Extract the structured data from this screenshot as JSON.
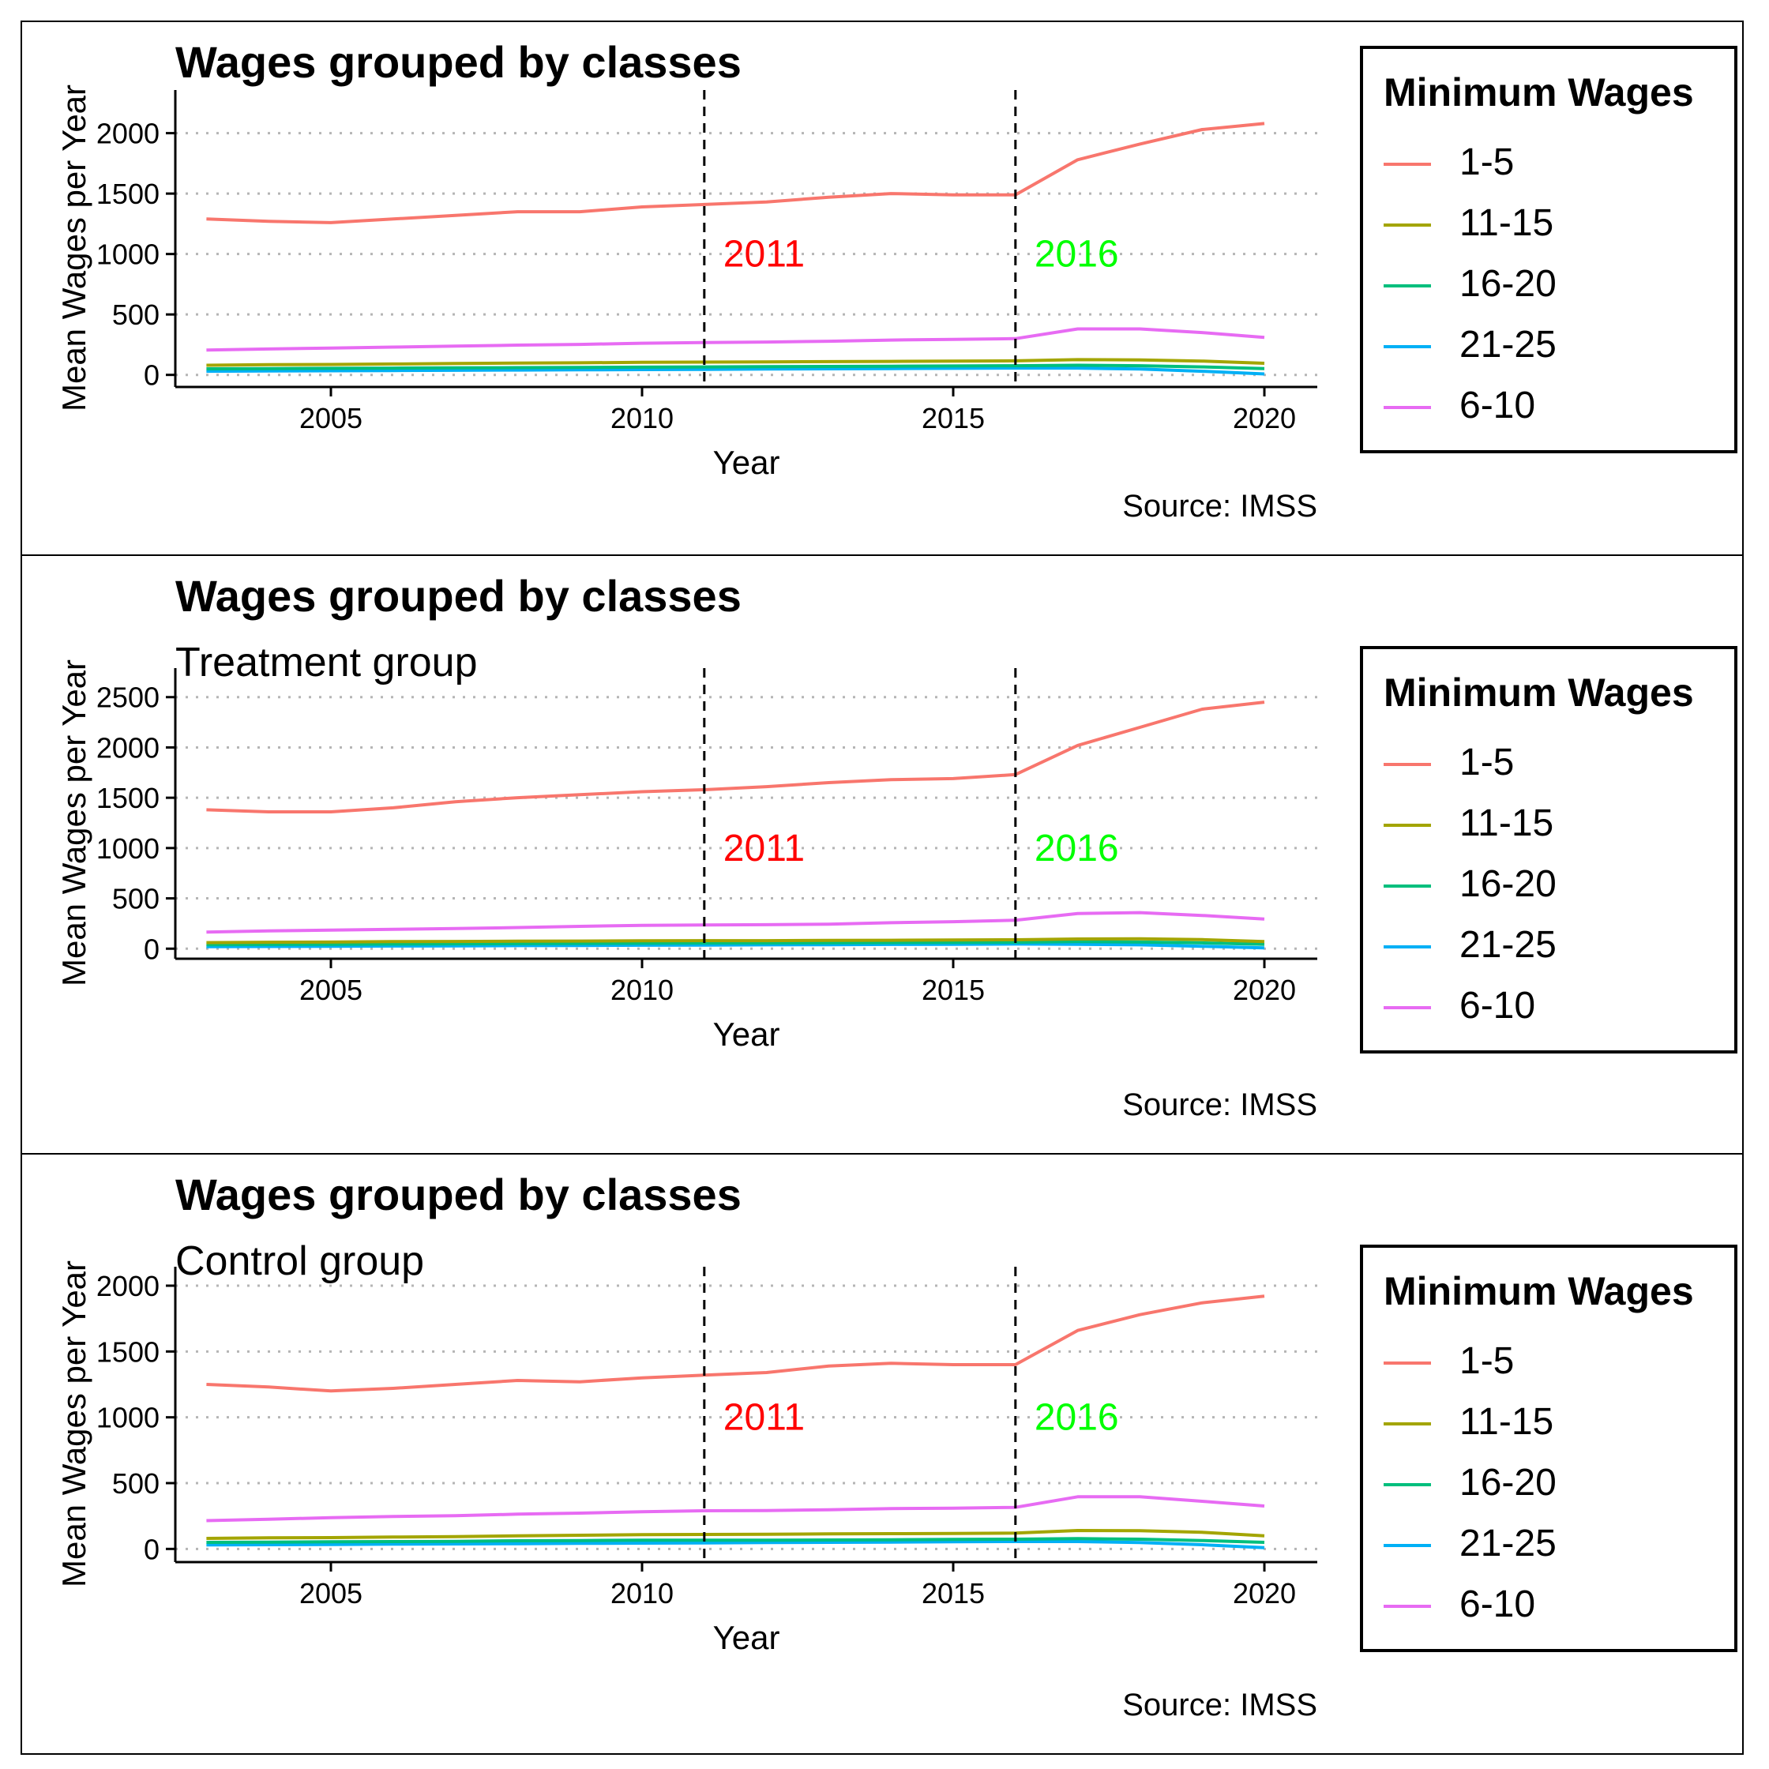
{
  "legend": {
    "title": "Minimum Wages",
    "entries": [
      {
        "label": "1-5",
        "color": "#F8766D"
      },
      {
        "label": "11-15",
        "color": "#A3A500"
      },
      {
        "label": "16-20",
        "color": "#00BF7D"
      },
      {
        "label": "21-25",
        "color": "#00B0F6"
      },
      {
        "label": "6-10",
        "color": "#E76BF3"
      }
    ]
  },
  "annotations": [
    {
      "x": 2011,
      "label": "2011",
      "color": "#FF0000"
    },
    {
      "x": 2016,
      "label": "2016",
      "color": "#00FF00"
    }
  ],
  "chart_data": [
    {
      "type": "line",
      "title": "Wages grouped by classes",
      "subtitle": "",
      "caption": "Source: IMSS",
      "xlabel": "Year",
      "ylabel": "Mean Wages per Year",
      "xlim": [
        2002.5,
        2020.85
      ],
      "ylim": [
        -100,
        2200
      ],
      "x_ticks": [
        2005,
        2010,
        2015,
        2020
      ],
      "y_ticks": [
        0,
        500,
        1000,
        1500,
        2000
      ],
      "grid": "horizontal-dotted",
      "x": [
        2003,
        2004,
        2005,
        2006,
        2007,
        2008,
        2009,
        2010,
        2011,
        2012,
        2013,
        2014,
        2015,
        2016,
        2017,
        2018,
        2019,
        2020
      ],
      "series": [
        {
          "name": "1-5",
          "values": [
            1290,
            1270,
            1260,
            1290,
            1320,
            1350,
            1350,
            1390,
            1410,
            1430,
            1470,
            1500,
            1490,
            1490,
            1780,
            1910,
            2030,
            2080
          ]
        },
        {
          "name": "11-15",
          "values": [
            80,
            84,
            86,
            90,
            94,
            98,
            100,
            104,
            106,
            108,
            110,
            112,
            114,
            116,
            126,
            124,
            114,
            96
          ]
        },
        {
          "name": "16-20",
          "values": [
            50,
            52,
            54,
            56,
            58,
            60,
            62,
            64,
            66,
            68,
            70,
            72,
            74,
            76,
            80,
            76,
            66,
            52
          ]
        },
        {
          "name": "21-25",
          "values": [
            30,
            32,
            34,
            36,
            38,
            40,
            42,
            44,
            46,
            48,
            50,
            52,
            54,
            56,
            56,
            48,
            30,
            8
          ]
        },
        {
          "name": "6-10",
          "values": [
            205,
            214,
            222,
            230,
            238,
            246,
            252,
            262,
            268,
            272,
            278,
            288,
            294,
            300,
            380,
            380,
            350,
            310
          ]
        }
      ]
    },
    {
      "type": "line",
      "title": "Wages grouped by classes",
      "subtitle": "Treatment group",
      "caption": "Source: IMSS",
      "xlabel": "Year",
      "ylabel": "Mean Wages per Year",
      "xlim": [
        2002.5,
        2020.85
      ],
      "ylim": [
        -100,
        2600
      ],
      "x_ticks": [
        2005,
        2010,
        2015,
        2020
      ],
      "y_ticks": [
        0,
        500,
        1000,
        1500,
        2000,
        2500
      ],
      "grid": "horizontal-dotted",
      "x": [
        2003,
        2004,
        2005,
        2006,
        2007,
        2008,
        2009,
        2010,
        2011,
        2012,
        2013,
        2014,
        2015,
        2016,
        2017,
        2018,
        2019,
        2020
      ],
      "series": [
        {
          "name": "1-5",
          "values": [
            1380,
            1360,
            1360,
            1400,
            1460,
            1500,
            1530,
            1560,
            1580,
            1610,
            1650,
            1680,
            1690,
            1730,
            2020,
            2200,
            2380,
            2450
          ]
        },
        {
          "name": "11-15",
          "values": [
            60,
            64,
            66,
            70,
            72,
            74,
            76,
            78,
            80,
            80,
            82,
            84,
            86,
            88,
            96,
            98,
            90,
            70
          ]
        },
        {
          "name": "16-20",
          "values": [
            40,
            42,
            44,
            46,
            48,
            50,
            52,
            54,
            56,
            56,
            58,
            60,
            62,
            64,
            70,
            66,
            58,
            44
          ]
        },
        {
          "name": "21-25",
          "values": [
            20,
            22,
            24,
            26,
            28,
            30,
            32,
            34,
            36,
            38,
            40,
            42,
            44,
            46,
            44,
            38,
            24,
            8
          ]
        },
        {
          "name": "6-10",
          "values": [
            165,
            176,
            185,
            192,
            200,
            210,
            222,
            232,
            236,
            238,
            244,
            258,
            268,
            282,
            350,
            358,
            330,
            295
          ]
        }
      ]
    },
    {
      "type": "line",
      "title": "Wages grouped by classes",
      "subtitle": "Control group",
      "caption": "Source: IMSS",
      "xlabel": "Year",
      "ylabel": "Mean Wages per Year",
      "xlim": [
        2002.5,
        2020.85
      ],
      "ylim": [
        -100,
        2000
      ],
      "x_ticks": [
        2005,
        2010,
        2015,
        2020
      ],
      "y_ticks": [
        0,
        500,
        1000,
        1500,
        2000
      ],
      "grid": "horizontal-dotted",
      "x": [
        2003,
        2004,
        2005,
        2006,
        2007,
        2008,
        2009,
        2010,
        2011,
        2012,
        2013,
        2014,
        2015,
        2016,
        2017,
        2018,
        2019,
        2020
      ],
      "series": [
        {
          "name": "1-5",
          "values": [
            1250,
            1230,
            1200,
            1220,
            1250,
            1280,
            1270,
            1300,
            1320,
            1340,
            1390,
            1410,
            1400,
            1400,
            1660,
            1780,
            1870,
            1920
          ]
        },
        {
          "name": "11-15",
          "values": [
            80,
            84,
            86,
            90,
            94,
            100,
            104,
            108,
            110,
            112,
            114,
            116,
            118,
            120,
            140,
            138,
            126,
            100
          ]
        },
        {
          "name": "16-20",
          "values": [
            50,
            52,
            54,
            56,
            58,
            62,
            64,
            66,
            66,
            66,
            68,
            70,
            72,
            74,
            78,
            74,
            64,
            50
          ]
        },
        {
          "name": "21-25",
          "values": [
            30,
            32,
            34,
            36,
            38,
            40,
            42,
            44,
            46,
            48,
            50,
            52,
            54,
            56,
            56,
            48,
            32,
            10
          ]
        },
        {
          "name": "6-10",
          "values": [
            215,
            225,
            238,
            246,
            252,
            264,
            272,
            282,
            290,
            292,
            298,
            306,
            310,
            316,
            396,
            396,
            362,
            326
          ]
        }
      ]
    }
  ]
}
